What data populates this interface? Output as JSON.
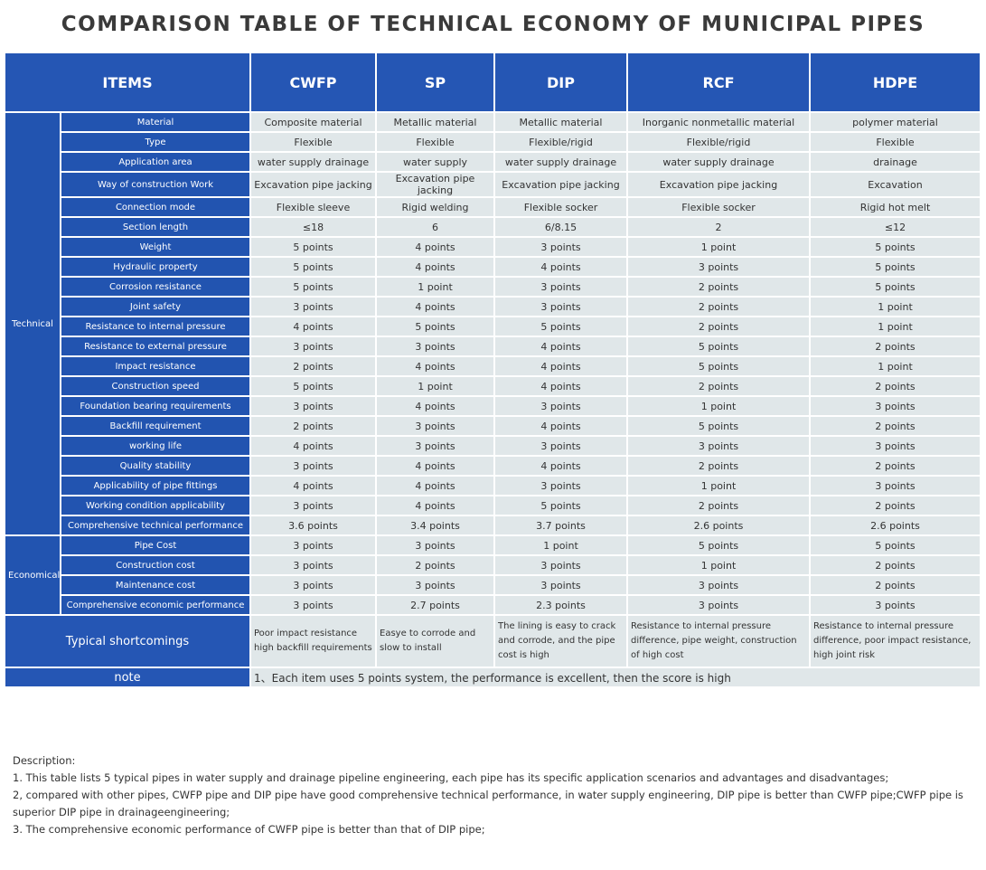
{
  "title": "COMPARISON TABLE OF TECHNICAL ECONOMY OF MUNICIPAL PIPES",
  "header": {
    "items": "ITEMS",
    "columns": [
      "CWFP",
      "SP",
      "DIP",
      "RCF",
      "HDPE"
    ]
  },
  "groups": [
    {
      "label": "Technical",
      "rows": [
        {
          "label": "Material",
          "cells": [
            "Composite material",
            "Metallic material",
            "Metallic material",
            "Inorganic  nonmetallic  material",
            "polymer material"
          ]
        },
        {
          "label": "Type",
          "cells": [
            "Flexible",
            "Flexible",
            "Flexible/rigid",
            "Flexible/rigid",
            "Flexible"
          ]
        },
        {
          "label": "Application area",
          "cells": [
            "water supply drainage",
            "water supply",
            "water supply drainage",
            "water supply drainage",
            "drainage"
          ]
        },
        {
          "label": "Way of construction Work",
          "cells": [
            "Excavation pipe jacking",
            "Excavation pipe jacking",
            "Excavation pipe jacking",
            "Excavation pipe jacking",
            "Excavation"
          ]
        },
        {
          "label": "Connection mode",
          "cells": [
            "Flexible sleeve",
            "Rigid welding",
            "Flexible socker",
            "Flexible socker",
            "Rigid hot melt"
          ]
        },
        {
          "label": "Section length",
          "cells": [
            "≤18",
            "6",
            "6/8.15",
            "2",
            "≤12"
          ]
        },
        {
          "label": "Weight",
          "cells": [
            "5 points",
            "4 points",
            "3 points",
            "1 point",
            "5 points"
          ]
        },
        {
          "label": "Hydraulic property",
          "cells": [
            "5 points",
            "4 points",
            "4 points",
            "3 points",
            "5 points"
          ]
        },
        {
          "label": "Corrosion resistance",
          "cells": [
            "5 points",
            "1 point",
            "3 points",
            "2 points",
            "5 points"
          ]
        },
        {
          "label": "Joint safety",
          "cells": [
            "3 points",
            "4 points",
            "3 points",
            "2 points",
            "1 point"
          ]
        },
        {
          "label": "Resistance to internal pressure",
          "cells": [
            "4 points",
            "5 points",
            "5 points",
            "2 points",
            "1 point"
          ]
        },
        {
          "label": "Resistance to external pressure",
          "cells": [
            "3 points",
            "3 points",
            "4 points",
            "5 points",
            "2 points"
          ]
        },
        {
          "label": "Impact resistance",
          "cells": [
            "2 points",
            "4 points",
            "4 points",
            "5 points",
            "1 point"
          ]
        },
        {
          "label": "Construction speed",
          "cells": [
            "5 points",
            "1 point",
            "4 points",
            "2 points",
            "2 points"
          ]
        },
        {
          "label": "Foundation bearing requirements",
          "cells": [
            "3 points",
            "4 points",
            "3 points",
            "1 point",
            "3 points"
          ]
        },
        {
          "label": "Backfill requirement",
          "cells": [
            "2 points",
            "3 points",
            "4 points",
            "5 points",
            "2 points"
          ]
        },
        {
          "label": "working life",
          "cells": [
            "4 points",
            "3 points",
            "3 points",
            "3 points",
            "3 points"
          ]
        },
        {
          "label": "Quality stability",
          "cells": [
            "3 points",
            "4 points",
            "4 points",
            "2 points",
            "2 points"
          ]
        },
        {
          "label": "Applicability of pipe fittings",
          "cells": [
            "4 points",
            "4 points",
            "3 points",
            "1 point",
            "3 points"
          ]
        },
        {
          "label": "Working condition applicability",
          "cells": [
            "3 points",
            "4 points",
            "5 points",
            "2 points",
            "2 points"
          ]
        },
        {
          "label": "Comprehensive technical performance",
          "cells": [
            "3.6 points",
            "3.4 points",
            "3.7 points",
            "2.6 points",
            "2.6 points"
          ]
        }
      ]
    },
    {
      "label": "Economical",
      "rows": [
        {
          "label": "Pipe Cost",
          "cells": [
            "3 points",
            "3 points",
            "1 point",
            "5 points",
            "5 points"
          ]
        },
        {
          "label": "Construction cost",
          "cells": [
            "3 points",
            "2 points",
            "3 points",
            "1 point",
            "2 points"
          ]
        },
        {
          "label": "Maintenance cost",
          "cells": [
            "3 points",
            "3 points",
            "3 points",
            "3 points",
            "2 points"
          ]
        },
        {
          "label": "Comprehensive economic performance",
          "cells": [
            "3 points",
            "2.7 points",
            "2.3 points",
            "3 points",
            "3 points"
          ]
        }
      ]
    }
  ],
  "shortcomings": {
    "label": "Typical shortcomings",
    "cells": [
      "Poor impact resistance high backfill requirements",
      "Easye to corrode and slow to install",
      "The lining is easy to crack and corrode, and the pipe cost is high",
      "Resistance to internal pressure difference, pipe weight, construction of high cost",
      "Resistance to internal pressure difference, poor impact resistance, high joint risk"
    ]
  },
  "note": {
    "label": "note",
    "text": "1、Each item uses 5 points system, the performance is excellent, then the score is high"
  },
  "description": {
    "heading": "Description:",
    "lines": [
      "1. This table lists 5 typical pipes in water supply and drainage pipeline engineering, each pipe has its specific application scenarios and advantages and disadvantages;",
      "2, compared with other pipes, CWFP pipe and DIP pipe have good comprehensive technical performance, in water supply engineering, DIP pipe is better than CWFP pipe;CWFP pipe is superior DIP pipe in drainageengineering;",
      "3. The comprehensive economic performance of CWFP pipe is better than that of DIP pipe;"
    ]
  }
}
